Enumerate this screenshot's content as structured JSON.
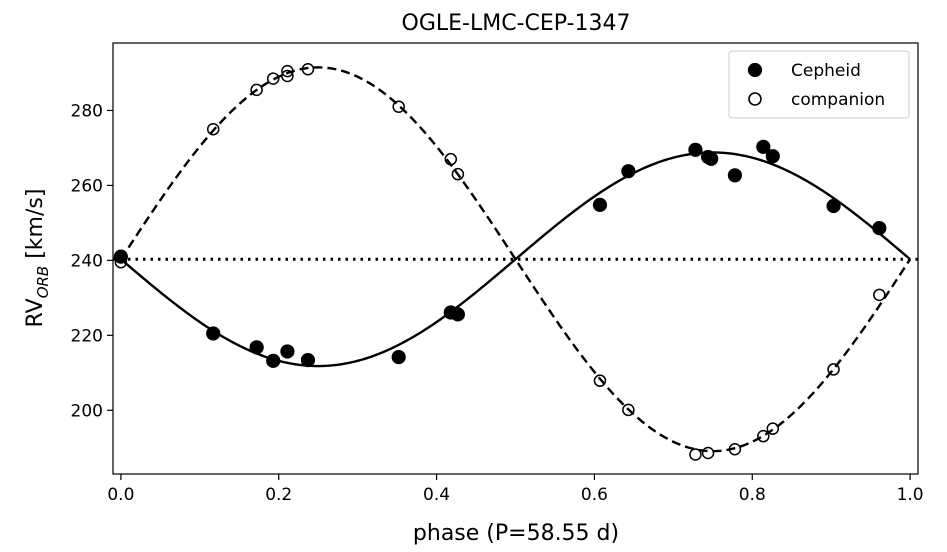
{
  "chart_data": {
    "type": "scatter",
    "title": "OGLE-LMC-CEP-1347",
    "xlabel": "phase (P=58.55 d)",
    "ylabel_main": "RV",
    "ylabel_sub": "ORB",
    "ylabel_unit": " [km/s]",
    "xlim": [
      -0.01,
      1.01
    ],
    "ylim": [
      183,
      298
    ],
    "xticks": [
      0.0,
      0.2,
      0.4,
      0.6,
      0.8,
      1.0
    ],
    "xtick_labels": [
      "0.0",
      "0.2",
      "0.4",
      "0.6",
      "0.8",
      "1.0"
    ],
    "yticks": [
      200,
      220,
      240,
      260,
      280
    ],
    "ytick_labels": [
      "200",
      "220",
      "240",
      "260",
      "280"
    ],
    "systemic_velocity": 240.3,
    "legend": {
      "location": "upper-right",
      "entries": [
        "Cepheid",
        "companion"
      ]
    },
    "series": [
      {
        "name": "Cepheid",
        "marker": "filled-circle",
        "curve_style": "solid",
        "curve_amplitude": -28.5,
        "x": [
          0.0,
          0.117,
          0.172,
          0.193,
          0.211,
          0.237,
          0.352,
          0.418,
          0.427,
          0.607,
          0.643,
          0.728,
          0.744,
          0.748,
          0.778,
          0.814,
          0.826,
          0.903,
          0.961
        ],
        "y": [
          241.0,
          220.5,
          216.8,
          213.2,
          215.7,
          213.4,
          214.2,
          226.1,
          225.6,
          254.8,
          263.8,
          269.5,
          267.6,
          267.1,
          262.7,
          270.3,
          267.8,
          254.5,
          248.6
        ]
      },
      {
        "name": "companion",
        "marker": "open-circle",
        "curve_style": "dashed",
        "curve_amplitude": 51.2,
        "x": [
          0.0,
          0.117,
          0.172,
          0.193,
          0.211,
          0.211,
          0.237,
          0.352,
          0.418,
          0.427,
          0.607,
          0.643,
          0.728,
          0.744,
          0.778,
          0.814,
          0.826,
          0.903,
          0.961
        ],
        "y": [
          239.5,
          275.0,
          285.5,
          288.5,
          289.2,
          290.5,
          291.0,
          281.0,
          267.0,
          263.0,
          207.9,
          200.1,
          188.2,
          188.6,
          189.6,
          193.1,
          195.1,
          210.9,
          230.8
        ]
      }
    ]
  }
}
